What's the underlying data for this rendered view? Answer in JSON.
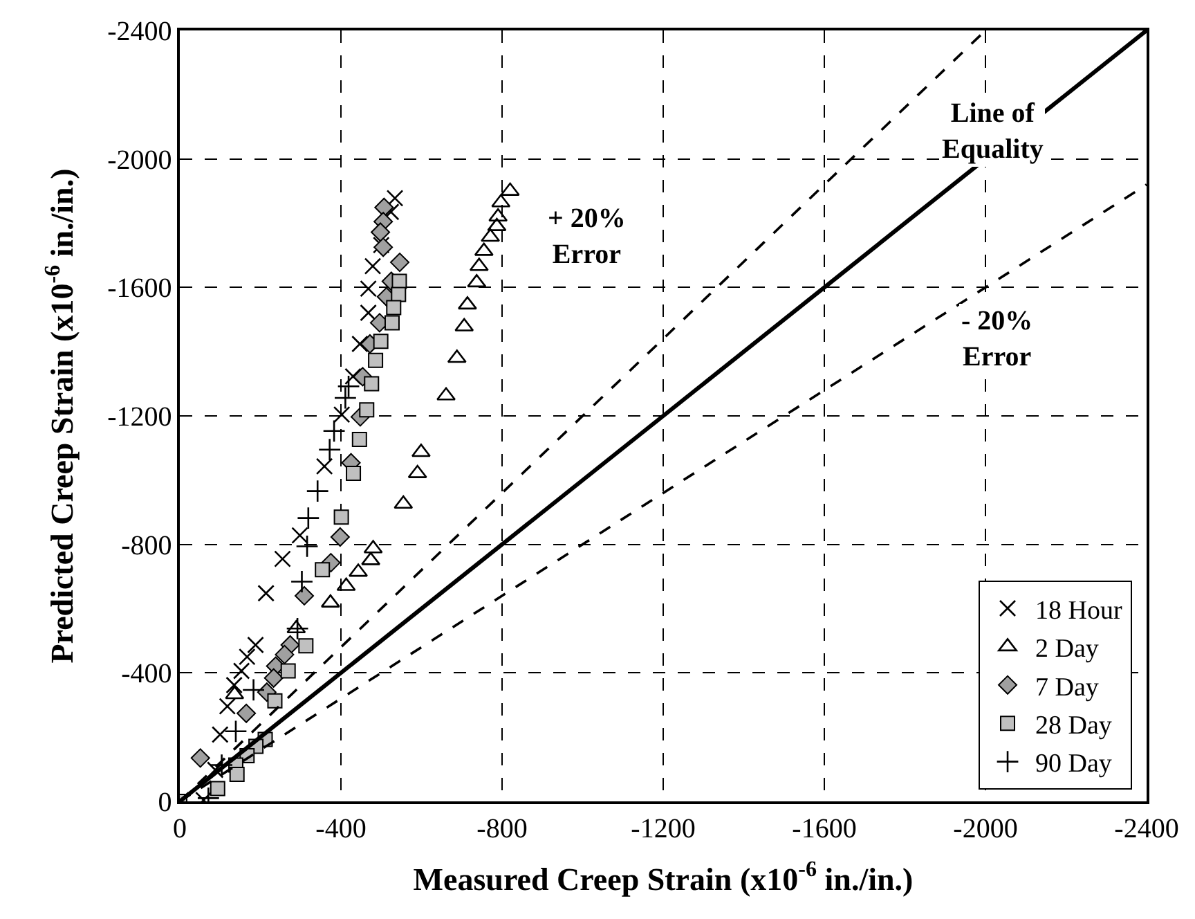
{
  "chart_data": {
    "type": "scatter",
    "xlabel": "Measured Creep Strain (x10$^{-6}$ in./in.)",
    "ylabel": "Predicted Creep Strain (x10$^{-6}$ in./in.)",
    "xlim": [
      0,
      -2400
    ],
    "ylim": [
      0,
      -2400
    ],
    "xticks": [
      0,
      -400,
      -800,
      -1200,
      -1600,
      -2000,
      -2400
    ],
    "yticks": [
      0,
      -400,
      -800,
      -1200,
      -1600,
      -2000,
      -2400
    ],
    "grid": true,
    "legend": "bottom right",
    "series": [
      {
        "name": "18 Hour",
        "color": "#000000",
        "marker": "x",
        "x": [
          -534,
          -524,
          -500,
          -479,
          -468,
          -468,
          -447,
          -430,
          -402,
          -359,
          -298,
          -255,
          -214,
          -188,
          -167,
          -153,
          -135,
          -118,
          -100,
          -88,
          -59
        ],
        "values": [
          -1878,
          -1835,
          -1732,
          -1666,
          -1596,
          -1521,
          -1424,
          -1323,
          -1204,
          -1043,
          -828,
          -755,
          -648,
          -487,
          -450,
          -406,
          -362,
          -296,
          -208,
          -98,
          -4
        ]
      },
      {
        "name": "2 Day",
        "color": "#000000",
        "marker": "triangle",
        "x": [
          -820,
          -797,
          -790,
          -787,
          -771,
          -755,
          -743,
          -737,
          -714,
          -706,
          -688,
          -661,
          -599,
          -590,
          -555,
          -480,
          -474,
          -443,
          -413,
          -374,
          -289,
          -136
        ],
        "values": [
          -1900,
          -1864,
          -1820,
          -1790,
          -1757,
          -1713,
          -1666,
          -1615,
          -1546,
          -1478,
          -1380,
          -1263,
          -1087,
          -1021,
          -926,
          -787,
          -750,
          -714,
          -670,
          -618,
          -538,
          -333
        ]
      },
      {
        "name": "7 Day",
        "color": "#a0a0a0",
        "marker": "diamond",
        "x": [
          -507,
          -505,
          -498,
          -505,
          -546,
          -525,
          -513,
          -496,
          -472,
          -454,
          -448,
          -425,
          -398,
          -375,
          -309,
          -274,
          -260,
          -238,
          -233,
          -216,
          -165,
          -51
        ],
        "values": [
          -1849,
          -1805,
          -1772,
          -1725,
          -1678,
          -1619,
          -1571,
          -1490,
          -1424,
          -1322,
          -1197,
          -1054,
          -823,
          -743,
          -640,
          -487,
          -457,
          -421,
          -384,
          -340,
          -274,
          -135
        ]
      },
      {
        "name": "28 Day",
        "color": "#c0c0c0",
        "marker": "square",
        "x": [
          -545,
          -543,
          -531,
          -527,
          -499,
          -486,
          -476,
          -464,
          -446,
          -431,
          -401,
          -354,
          -313,
          -269,
          -236,
          -212,
          -189,
          -167,
          -139,
          -142,
          -94,
          0
        ],
        "values": [
          -1619,
          -1578,
          -1537,
          -1490,
          -1432,
          -1373,
          -1300,
          -1219,
          -1127,
          -1021,
          -885,
          -721,
          -484,
          -406,
          -313,
          -193,
          -171,
          -142,
          -113,
          -84,
          -40,
          0
        ]
      },
      {
        "name": "90 Day",
        "color": "#000000",
        "marker": "cross",
        "x": [
          -419,
          -411,
          -383,
          -372,
          -342,
          -319,
          -316,
          -303,
          -292,
          -183,
          -139,
          -104,
          -71
        ],
        "values": [
          -1292,
          -1256,
          -1153,
          -1095,
          -966,
          -882,
          -794,
          -684,
          -538,
          -347,
          -218,
          -113,
          -10
        ]
      },
      {
        "type": "line",
        "color": "#000000",
        "marker": "none",
        "line_style": "solid",
        "x": [
          0,
          -2400
        ],
        "values": [
          0,
          -2400
        ]
      },
      {
        "type": "line",
        "color": "#000000",
        "marker": "none",
        "line_style": "dashed",
        "x": [
          0,
          -2000
        ],
        "values": [
          0,
          -2400
        ]
      },
      {
        "type": "line",
        "color": "#000000",
        "marker": "none",
        "line_style": "dashed",
        "x": [
          0,
          -2400
        ],
        "values": [
          0,
          -1920
        ]
      }
    ],
    "annotations": [
      "+ 20%\nError",
      "Line of\nEquality",
      "- 20%\nError"
    ]
  }
}
